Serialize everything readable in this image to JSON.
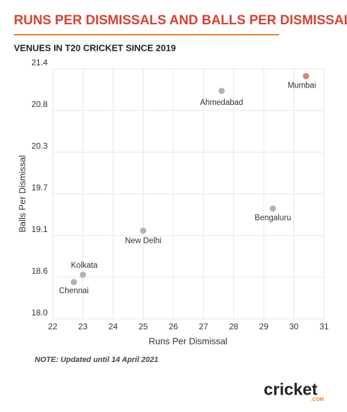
{
  "chart_data": {
    "type": "scatter",
    "title": "RUNS PER DISMISSALS AND BALLS PER DISMISSAL",
    "subtitle": "VENUES IN T20 CRICKET SINCE 2019",
    "x_label": "Runs Per Dismissal",
    "y_label": "Balls Per Dismissal",
    "note": "NOTE: Updated until 14 April 2021",
    "logo": "cricket",
    "logo_sub": ".COM",
    "labels": [
      "Chennai",
      "Kolkata",
      "New Delhi",
      "Ahmedabad",
      "Bengaluru",
      "Mumbai"
    ],
    "x": [
      22.7,
      23.0,
      25.0,
      27.6,
      29.3,
      30.4
    ],
    "values": [
      18.5,
      18.6,
      19.2,
      21.1,
      19.5,
      21.3
    ],
    "colors": [
      "#b3b3b3",
      "#b3b3b3",
      "#b3b3b3",
      "#b3b3b3",
      "#b3b3b3",
      "#e57f80"
    ],
    "xlim": [
      22,
      31
    ],
    "xticks": [
      22,
      23,
      24,
      25,
      26,
      27,
      28,
      29,
      30,
      31
    ],
    "ylim": [
      18.0,
      21.4
    ],
    "yticks": [
      {
        "value": 18.0,
        "label": "18.0"
      },
      {
        "value": 18.5667,
        "label": "18.6"
      },
      {
        "value": 19.1333,
        "label": "19.1"
      },
      {
        "value": 19.7,
        "label": "19.7"
      },
      {
        "value": 20.2667,
        "label": "20.3"
      },
      {
        "value": 20.8333,
        "label": "20.8"
      },
      21.4
    ],
    "grid": true
  }
}
